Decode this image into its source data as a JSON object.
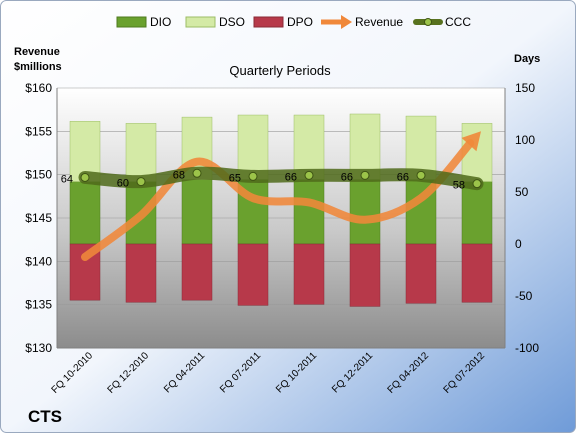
{
  "chart_data": {
    "type": "bar",
    "title": "Quarterly Periods",
    "company": "CTS",
    "y_left_label": [
      "Revenue",
      "$millions"
    ],
    "y_right_label": "Days",
    "y_left_range": [
      130,
      160
    ],
    "y_left_ticks": [
      "$130",
      "$135",
      "$140",
      "$145",
      "$150",
      "$155",
      "$160"
    ],
    "y_left_tick_values": [
      130,
      135,
      140,
      145,
      150,
      155,
      160
    ],
    "y_right_range": [
      -100,
      150
    ],
    "y_right_ticks": [
      "-100",
      "-50",
      "0",
      "50",
      "100",
      "150"
    ],
    "y_right_tick_values": [
      -100,
      -50,
      0,
      50,
      100,
      150
    ],
    "categories": [
      "FQ 10-2010",
      "FQ 12-2010",
      "FQ 04-2011",
      "FQ 07-2011",
      "FQ 10-2011",
      "FQ 12-2011",
      "FQ 04-2012",
      "FQ 07-2012"
    ],
    "legend_position": "top",
    "legend": [
      "DIO",
      "DSO",
      "DPO",
      "Revenue",
      "CCC"
    ],
    "series": [
      {
        "name": "DIO",
        "axis": "right",
        "color": "#6aa12e",
        "values": [
          60,
          60,
          62,
          62,
          62,
          62,
          62,
          60
        ]
      },
      {
        "name": "DSO",
        "axis": "right",
        "color": "#d4eaa6",
        "values": [
          58,
          56,
          60,
          62,
          62,
          63,
          61,
          56
        ]
      },
      {
        "name": "DPO",
        "axis": "right",
        "color": "#b7394a",
        "values": [
          -54,
          -56,
          -54,
          -59,
          -58,
          -60,
          -57,
          -56
        ]
      },
      {
        "name": "Revenue",
        "axis": "left",
        "color": "#f0883a",
        "values": [
          140.5,
          145.3,
          151.5,
          147.3,
          146.8,
          144.8,
          147.3,
          154.5
        ]
      },
      {
        "name": "CCC",
        "axis": "right",
        "color": "#58721f",
        "values": [
          64,
          60,
          68,
          65,
          66,
          66,
          66,
          58
        ],
        "labels": [
          "64",
          "60",
          "68",
          "65",
          "66",
          "66",
          "66",
          "58"
        ]
      }
    ]
  }
}
